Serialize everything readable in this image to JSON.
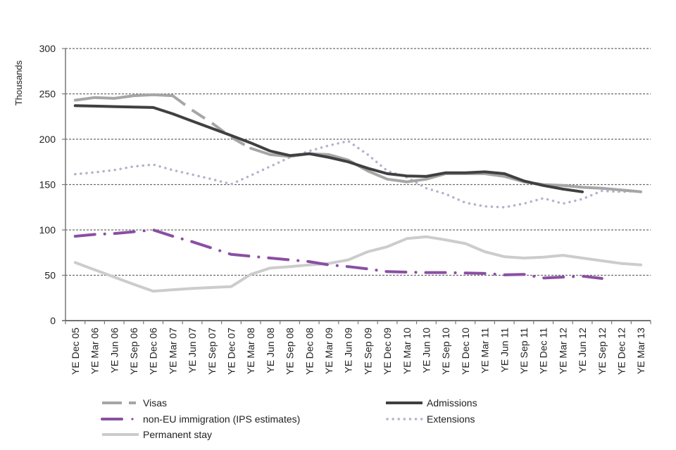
{
  "chart_data": {
    "type": "line",
    "title": "",
    "xlabel": "",
    "ylabel": "Thousands",
    "ylim": [
      0,
      300
    ],
    "yticks": [
      0,
      50,
      100,
      150,
      200,
      250,
      300
    ],
    "grid": true,
    "legend_position": "bottom",
    "categories": [
      "YE Dec 05",
      "YE Mar 06",
      "YE Jun 06",
      "YE Sep 06",
      "YE Dec 06",
      "YE Mar 07",
      "YE Jun 07",
      "YE Sep 07",
      "YE Dec 07",
      "YE Mar 08",
      "YE Jun 08",
      "YE Sep 08",
      "YE Dec 08",
      "YE Mar 09",
      "YE Jun 09",
      "YE Sep 09",
      "YE Dec 09",
      "YE Mar 10",
      "YE Jun 10",
      "YE Sep 10",
      "YE Dec 10",
      "YE Mar 11",
      "YE Jun 11",
      "YE Sep 11",
      "YE Dec 11",
      "YE Mar 12",
      "YE Jun 12",
      "YE Sep 12",
      "YE Dec 12",
      "YE Mar 13"
    ],
    "series": [
      {
        "name": "Visas",
        "color": "#a6a6a6",
        "style": "dash-dot-long",
        "values": [
          243,
          246,
          245,
          248,
          249,
          248,
          232,
          218,
          202,
          190,
          183,
          181,
          184,
          183,
          177,
          165,
          156,
          153,
          156,
          162,
          162,
          162,
          159,
          153,
          150,
          149,
          147,
          146,
          144,
          142
        ]
      },
      {
        "name": "Admissions",
        "color": "#404040",
        "style": "solid",
        "values": [
          237,
          236.5,
          236,
          235.5,
          235,
          228,
          220,
          212,
          204,
          196,
          187,
          182,
          184,
          180,
          175,
          168,
          162,
          159.5,
          159,
          163,
          163,
          164,
          162,
          154,
          149,
          145,
          142,
          null,
          null,
          null
        ]
      },
      {
        "name": "non-EU immigration (IPS estimates)",
        "color": "#8a4fa3",
        "style": "dash-dot",
        "values": [
          93,
          95,
          96,
          98,
          100,
          93,
          87,
          80,
          73,
          71,
          69,
          67,
          65,
          61.5,
          59.5,
          57,
          54,
          53.5,
          53,
          53,
          52.5,
          52,
          50.5,
          51,
          47,
          48,
          49,
          46.5,
          null,
          null
        ]
      },
      {
        "name": "Extensions",
        "color": "#b9b0cc",
        "style": "dotted",
        "values": [
          161.5,
          163.5,
          166,
          170,
          172,
          166,
          161,
          156,
          150.5,
          160,
          170,
          180,
          187,
          193,
          198,
          183,
          165,
          158,
          146,
          139.5,
          130,
          126,
          125,
          129,
          135,
          129,
          134,
          143,
          142,
          143
        ]
      },
      {
        "name": "Permanent stay",
        "color": "#cccccc",
        "style": "solid",
        "values": [
          64,
          56,
          48,
          40,
          32.5,
          34,
          35.5,
          36.5,
          37.5,
          51,
          58,
          59.5,
          61.5,
          63,
          67,
          76,
          81.5,
          90.5,
          92.5,
          89,
          85,
          76,
          70.5,
          69,
          70,
          72,
          69,
          66,
          63,
          61.5
        ]
      }
    ]
  },
  "legend": [
    {
      "label": "Visas",
      "series": 0
    },
    {
      "label": "Admissions",
      "series": 1
    },
    {
      "label": "non-EU immigration (IPS estimates)",
      "series": 2
    },
    {
      "label": "Extensions",
      "series": 3
    },
    {
      "label": "Permanent stay",
      "series": 4
    }
  ]
}
